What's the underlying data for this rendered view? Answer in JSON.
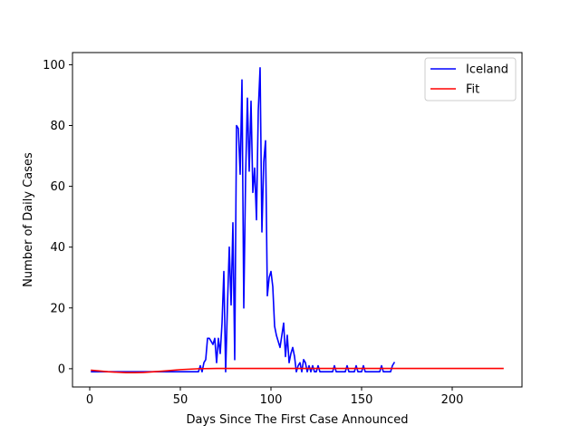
{
  "chart_data": {
    "type": "line",
    "title": "",
    "xlabel": "Days Since The First Case Announced",
    "ylabel": "Number of Daily Cases",
    "xlim": [
      -9.5,
      238.5
    ],
    "ylim": [
      -6,
      104
    ],
    "xticks": [
      0,
      50,
      100,
      150,
      200
    ],
    "yticks": [
      0,
      20,
      40,
      60,
      80,
      100
    ],
    "grid": false,
    "legend_position": "upper right",
    "series": [
      {
        "name": "Iceland",
        "color": "#0000ff",
        "x": [
          1,
          60,
          61,
          62,
          63,
          64,
          65,
          66,
          67,
          68,
          69,
          70,
          71,
          72,
          73,
          74,
          75,
          76,
          77,
          78,
          79,
          80,
          81,
          82,
          83,
          84,
          85,
          86,
          87,
          88,
          89,
          90,
          91,
          92,
          93,
          94,
          95,
          96,
          97,
          98,
          99,
          100,
          101,
          102,
          103,
          104,
          105,
          106,
          107,
          108,
          109,
          110,
          111,
          112,
          113,
          114,
          115,
          116,
          117,
          118,
          119,
          120,
          121,
          122,
          123,
          124,
          125,
          126,
          127,
          128,
          129,
          130,
          131,
          132,
          133,
          134,
          135,
          136,
          137,
          138,
          139,
          140,
          141,
          142,
          143,
          144,
          145,
          146,
          147,
          148,
          149,
          150,
          151,
          152,
          153,
          154,
          155,
          156,
          157,
          158,
          159,
          160,
          161,
          162,
          163,
          164,
          165,
          166,
          167,
          168
        ],
        "y": [
          -1,
          -1,
          1,
          -1,
          2,
          3,
          10,
          10,
          9,
          8,
          10,
          2,
          10,
          5,
          15,
          32,
          -1,
          21,
          40,
          21,
          48,
          3,
          80,
          79,
          64,
          95,
          20,
          63,
          89,
          65,
          88,
          58,
          66,
          49,
          85,
          99,
          45,
          68,
          75,
          24,
          30,
          32,
          27,
          14,
          11,
          9,
          7,
          11,
          15,
          4,
          11,
          2,
          5,
          7,
          4,
          -1,
          1,
          2,
          -1,
          3,
          2,
          -1,
          1,
          -1,
          1,
          -1,
          -1,
          1,
          -1,
          -1,
          -1,
          -1,
          -1,
          -1,
          -1,
          -1,
          1,
          -1,
          -1,
          -1,
          -1,
          -1,
          -1,
          1,
          -1,
          -1,
          -1,
          -1,
          1,
          -1,
          -1,
          -1,
          1,
          -1,
          -1,
          -1,
          -1,
          -1,
          -1,
          -1,
          -1,
          -1,
          1,
          -1,
          -1,
          -1,
          -1,
          -1,
          1,
          2
        ]
      },
      {
        "name": "Fit",
        "color": "#ff0000",
        "x": [
          1,
          10,
          20,
          25,
          30,
          40,
          50,
          60,
          70,
          80,
          100,
          150,
          200,
          228
        ],
        "y": [
          -0.5,
          -1.0,
          -1.3,
          -1.3,
          -1.2,
          -0.8,
          -0.3,
          0.0,
          0.1,
          0.1,
          0.1,
          0.1,
          0.1,
          0.1
        ]
      }
    ]
  }
}
